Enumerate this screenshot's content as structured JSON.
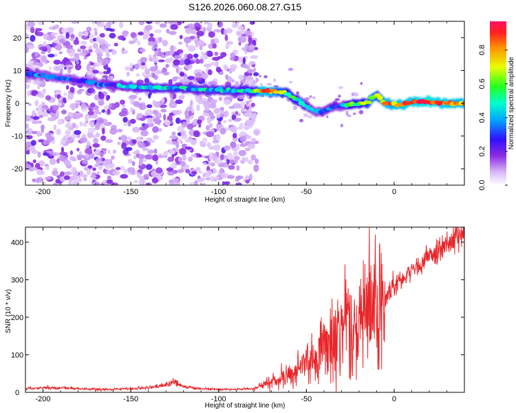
{
  "title": "S126.2026.060.08.27.G15",
  "chart_data": [
    {
      "type": "heatmap",
      "xlabel": "Height of straight line (km)",
      "ylabel": "Frequency (Hz)",
      "xlim": [
        -210,
        40
      ],
      "ylim": [
        -25,
        25
      ],
      "xticks": [
        -200,
        -150,
        -100,
        -50,
        0
      ],
      "yticks": [
        -20,
        -10,
        0,
        10,
        20
      ],
      "colorbar": {
        "label": "Normalized spectral amplitude",
        "range": [
          0,
          0.97
        ],
        "ticks": [
          0.0,
          0.2,
          0.4,
          0.6,
          0.8
        ]
      },
      "ridge": {
        "x": [
          -207,
          -200,
          -190,
          -180,
          -175,
          -160,
          -150,
          -140,
          -120,
          -100,
          -90,
          -80,
          -75,
          -70,
          -62,
          -55,
          -50,
          -45,
          -40,
          -35,
          -30,
          -25,
          -20,
          -15,
          -12,
          -10,
          -8,
          -5,
          0,
          5,
          10,
          20,
          30,
          40
        ],
        "y": [
          9,
          8.5,
          7.5,
          7,
          6.5,
          5.5,
          5,
          4.8,
          4.5,
          4,
          3.8,
          3.7,
          3.7,
          3.6,
          3.2,
          1,
          -1,
          -2.5,
          -2.5,
          -1,
          -1,
          -0.5,
          0,
          0,
          2,
          2.5,
          1.5,
          0,
          -0.5,
          -0.5,
          0.5,
          0.5,
          0,
          0
        ],
        "amplitude": [
          0.35,
          0.3,
          0.3,
          0.3,
          0.3,
          0.35,
          0.4,
          0.45,
          0.4,
          0.45,
          0.45,
          0.5,
          0.85,
          0.8,
          0.6,
          0.5,
          0.4,
          0.3,
          0.35,
          0.35,
          0.3,
          0.55,
          0.5,
          0.6,
          0.75,
          0.6,
          0.7,
          0.8,
          0.8,
          0.85,
          0.85,
          0.9,
          0.85,
          0.8
        ]
      },
      "noise_region_km": [
        -210,
        -78
      ]
    },
    {
      "type": "line",
      "xlabel": "Height of straight line (km)",
      "ylabel": "SNR (10 * v/v)",
      "xlim": [
        -210,
        40
      ],
      "ylim": [
        0,
        440
      ],
      "xticks": [
        -200,
        -150,
        -100,
        -50,
        0
      ],
      "yticks": [
        0,
        100,
        200,
        300,
        400
      ],
      "color": "#e8262a",
      "series": [
        {
          "name": "SNR",
          "x": [
            -210,
            -200,
            -190,
            -180,
            -170,
            -160,
            -150,
            -140,
            -130,
            -125,
            -120,
            -110,
            -100,
            -90,
            -80,
            -75,
            -70,
            -65,
            -60,
            -55,
            -50,
            -45,
            -40,
            -35,
            -30,
            -25,
            -22,
            -20,
            -15,
            -10,
            -5,
            0,
            5,
            10,
            15,
            20,
            25,
            30,
            35,
            40
          ],
          "y": [
            10,
            12,
            12,
            10,
            8,
            8,
            10,
            12,
            20,
            28,
            15,
            10,
            8,
            8,
            10,
            20,
            28,
            35,
            50,
            65,
            80,
            100,
            125,
            160,
            185,
            215,
            120,
            195,
            230,
            240,
            255,
            285,
            305,
            330,
            345,
            365,
            380,
            395,
            410,
            420
          ]
        }
      ]
    }
  ]
}
